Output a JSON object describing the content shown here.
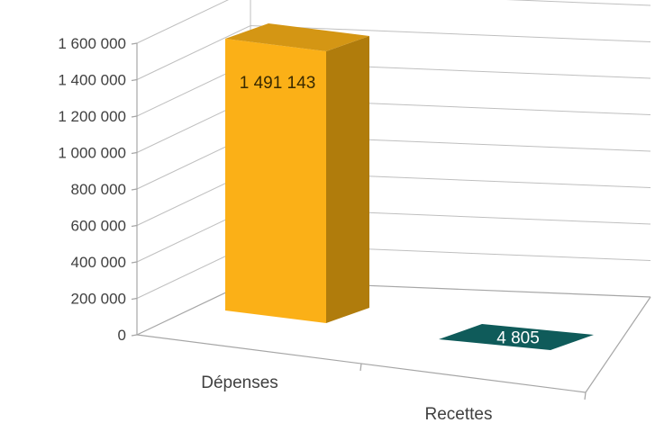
{
  "chart_data": {
    "type": "bar",
    "categories": [
      "Dépenses",
      "Recettes"
    ],
    "values": [
      1491143,
      4805
    ],
    "data_labels": [
      "1 491 143",
      "4 805"
    ],
    "ylim": [
      0,
      1600000
    ],
    "yticks": [
      0,
      200000,
      400000,
      600000,
      800000,
      1000000,
      1200000,
      1400000,
      1600000
    ],
    "ytick_labels": [
      "0",
      "200 000",
      "400 000",
      "600 000",
      "800 000",
      "1 000 000",
      "1 200 000",
      "1 400 000",
      "1 600 000"
    ],
    "grid": true,
    "legend": "none",
    "style": "3d-column",
    "colors": {
      "Dépenses": {
        "front": "#fbb017",
        "side": "#b07c0c",
        "top": "#d49614"
      },
      "Recettes": {
        "front": "#0f5b5a",
        "side": "#0a3f3f",
        "top": "#0f5b5a"
      }
    },
    "label_colors": [
      "#3a2a00",
      "#ffffff"
    ]
  }
}
